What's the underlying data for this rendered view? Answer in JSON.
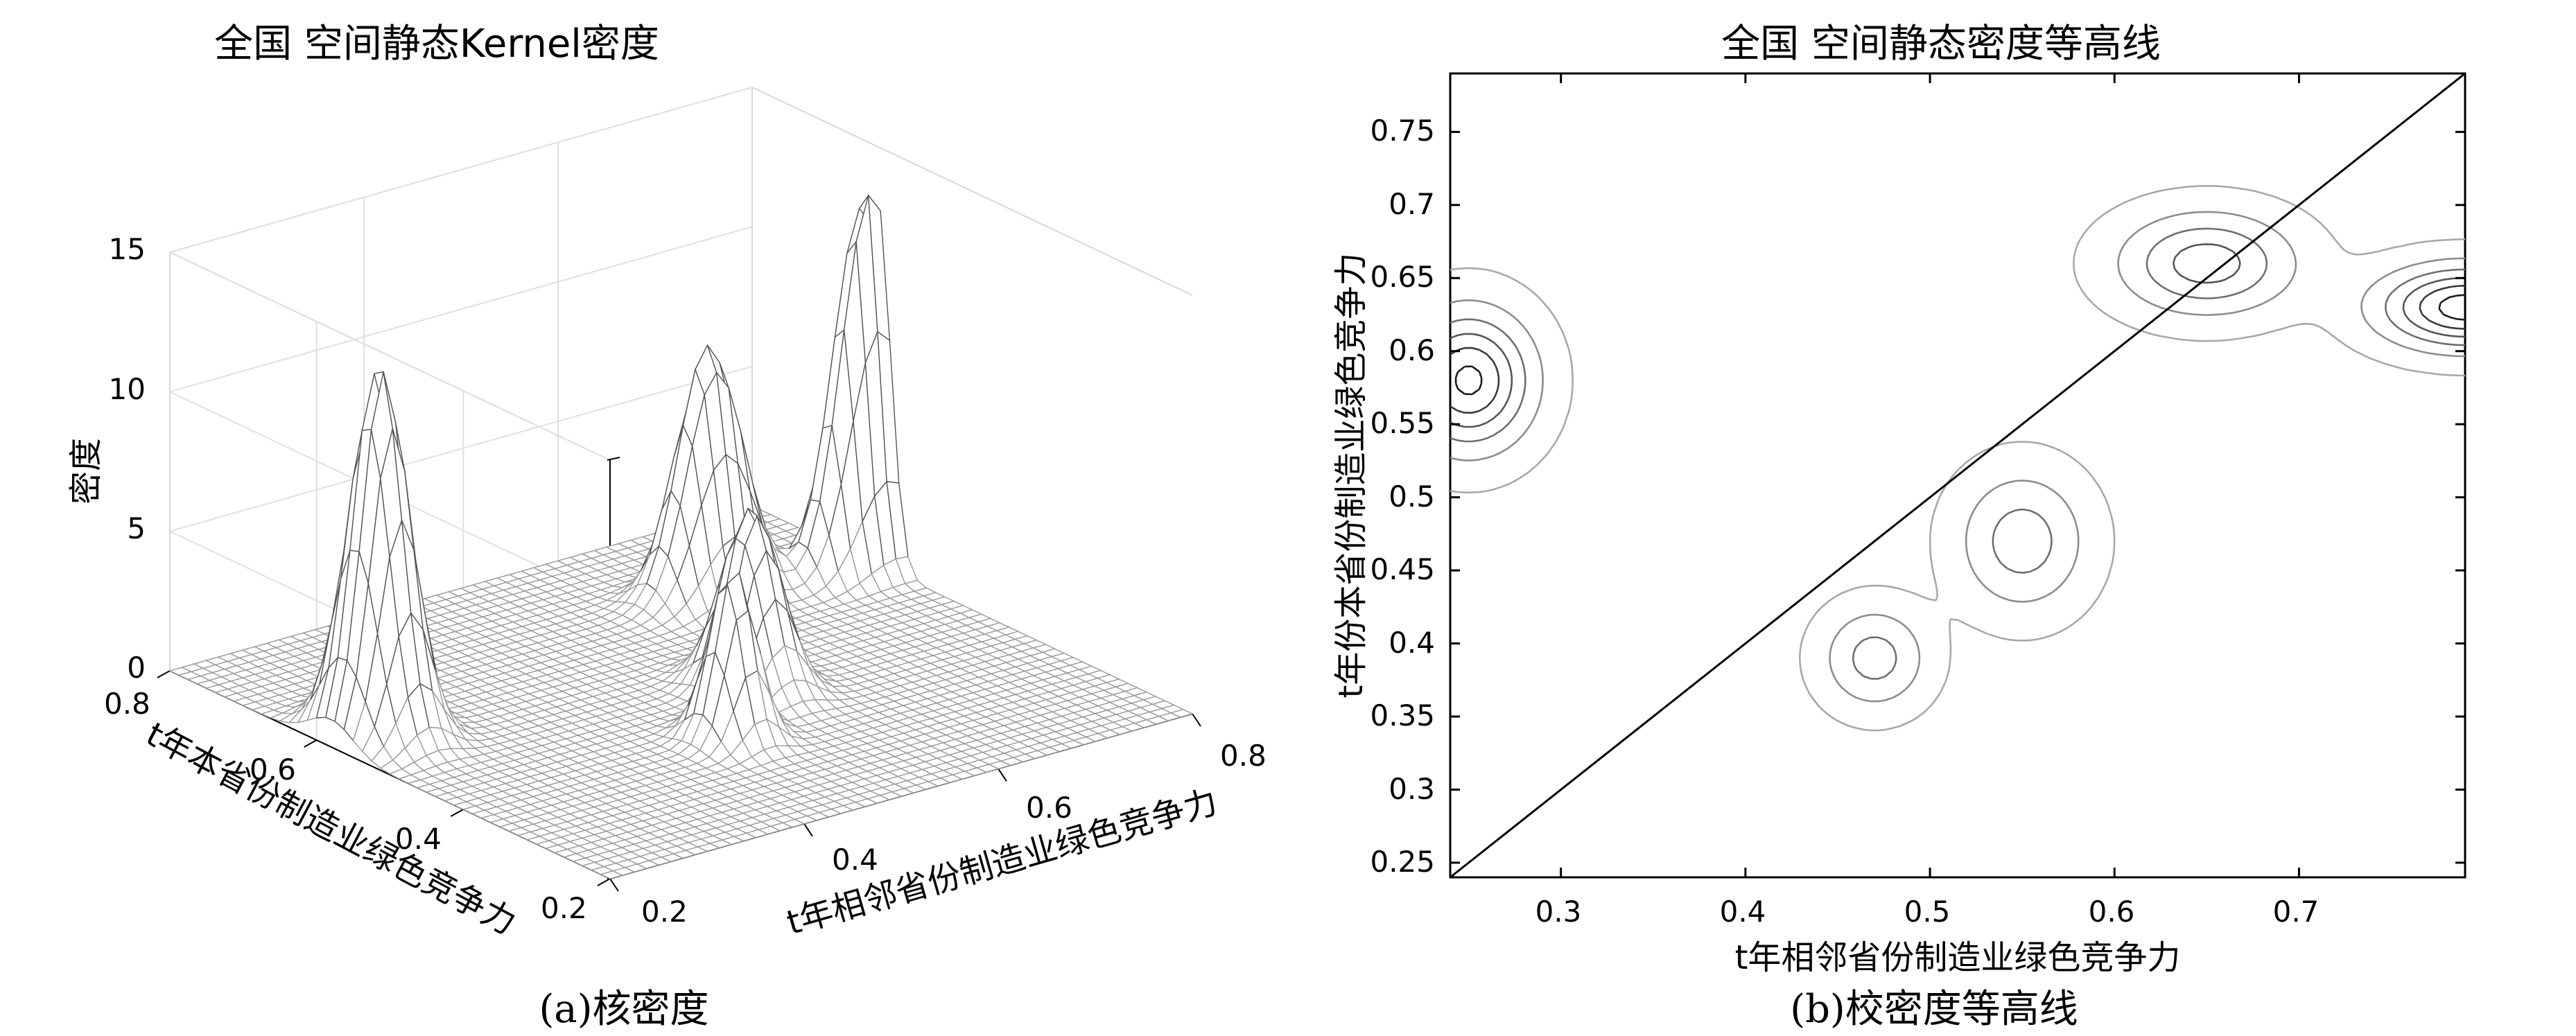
{
  "chart_data": [
    {
      "type": "surface",
      "title": "全国 空间静态Kernel密度",
      "zlabel": "密度",
      "xlabel": "t年相邻省份制造业绿色竞争力",
      "ylabel": "t年本省份制造业绿色竞争力",
      "zticks": [
        "0",
        "5",
        "10",
        "15"
      ],
      "xticks": [
        "0.2",
        "0.4",
        "0.6",
        "0.8"
      ],
      "yticks": [
        "0.2",
        "0.4",
        "0.6",
        "0.8"
      ],
      "zlim": [
        0,
        15
      ],
      "xlim": [
        0.2,
        0.8
      ],
      "ylim": [
        0.2,
        0.8
      ],
      "grid": true,
      "caption": "(a)核密度",
      "peaks": [
        {
          "x": 0.25,
          "y": 0.58,
          "z": 13.2
        },
        {
          "x": 0.79,
          "y": 0.63,
          "z": 14.0
        },
        {
          "x": 0.47,
          "y": 0.39,
          "z": 6.2
        },
        {
          "x": 0.55,
          "y": 0.47,
          "z": 6.5
        },
        {
          "x": 0.65,
          "y": 0.66,
          "z": 9.0
        }
      ]
    },
    {
      "type": "contour",
      "title": "全国 空间静态密度等高线",
      "xlabel": "t年相邻省份制造业绿色竞争力",
      "ylabel": "t年份本省份制造业绿色竞争力",
      "xticks": [
        "0.3",
        "0.4",
        "0.5",
        "0.6",
        "0.7"
      ],
      "yticks": [
        "0.25",
        "0.3",
        "0.35",
        "0.4",
        "0.45",
        "0.5",
        "0.55",
        "0.6",
        "0.65",
        "0.7",
        "0.75"
      ],
      "xlim": [
        0.24,
        0.79
      ],
      "ylim": [
        0.24,
        0.79
      ],
      "diagonal": true,
      "caption": "(b)校密度等高线",
      "peaks": [
        {
          "x": 0.25,
          "y": 0.58,
          "z": 13.2
        },
        {
          "x": 0.79,
          "y": 0.63,
          "z": 14.0
        },
        {
          "x": 0.47,
          "y": 0.39,
          "z": 6.2
        },
        {
          "x": 0.55,
          "y": 0.47,
          "z": 6.5
        },
        {
          "x": 0.65,
          "y": 0.66,
          "z": 9.0
        }
      ]
    }
  ]
}
